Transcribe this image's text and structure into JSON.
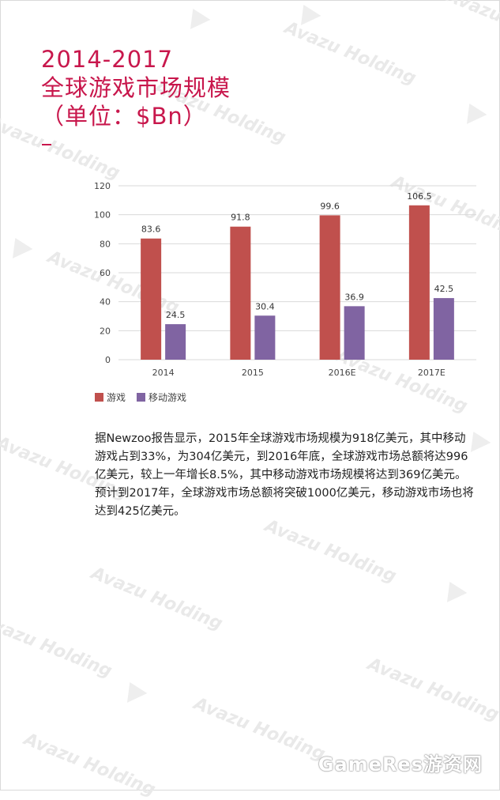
{
  "title": {
    "line1": "2014-2017",
    "line2": "全球游戏市场规模",
    "line3": "（单位：$Bn）"
  },
  "watermark": "Avazu Holding",
  "chart_data": {
    "type": "bar",
    "categories": [
      "2014",
      "2015",
      "2016E",
      "2017E"
    ],
    "series": [
      {
        "name": "游戏",
        "values": [
          83.6,
          91.8,
          99.6,
          106.5
        ],
        "color": "#c0504d"
      },
      {
        "name": "移动游戏",
        "values": [
          24.5,
          30.4,
          36.9,
          42.5
        ],
        "color": "#8064a2"
      }
    ],
    "ylim": [
      0,
      120
    ],
    "yticks": [
      0,
      20,
      40,
      60,
      80,
      100,
      120
    ],
    "grid": true,
    "legend": "bottom-left"
  },
  "legend": {
    "game": "游戏",
    "mobile": "移动游戏"
  },
  "body_text": "据Newzoo报告显示，2015年全球游戏市场规模为918亿美元，其中移动游戏占到33%，为304亿美元，到2016年底，全球游戏市场总额将达996亿美元，较上一年增长8.5%，其中移动游戏市场规模将达到369亿美元。预计到2017年，全球游戏市场总额将突破1000亿美元，移动游戏市场也将达到425亿美元。",
  "site_mark": "GameRes游资网",
  "colors": {
    "title": "#c8174c",
    "game": "#c0504d",
    "mobile": "#8064a2"
  }
}
